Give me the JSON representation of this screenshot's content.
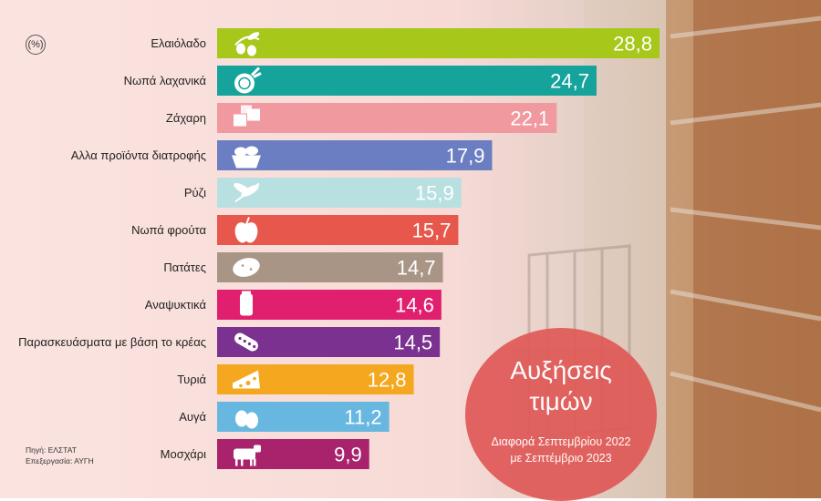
{
  "unit": "(%)",
  "source": [
    "Πηγή: ΕΛΣΤΑΤ",
    "Επεξεργασία: ΑΥΓΗ"
  ],
  "bubble": {
    "title_line1": "Αυξήσεις",
    "title_line2": "τιμών",
    "sub_line1": "Διαφορά Σεπτεμβρίου 2022",
    "sub_line2": "με Σεπτέμβριο 2023"
  },
  "chart_data": {
    "type": "bar",
    "orientation": "horizontal",
    "categories": [
      "Ελαιόλαδο",
      "Νωπά λαχανικά",
      "Ζάχαρη",
      "Αλλα προϊόντα διατροφής",
      "Ρύζι",
      "Νωπά φρούτα",
      "Πατάτες",
      "Αναψυκτικά",
      "Παρασκευάσματα με βάση το κρέας",
      "Τυριά",
      "Αυγά",
      "Μοσχάρι"
    ],
    "values": [
      28.8,
      24.7,
      22.1,
      17.9,
      15.9,
      15.7,
      14.7,
      14.6,
      14.5,
      12.8,
      11.2,
      9.9
    ],
    "value_labels": [
      "28,8",
      "24,7",
      "22,1",
      "17,9",
      "15,9",
      "15,7",
      "14,7",
      "14,6",
      "14,5",
      "12,8",
      "11,2",
      "9,9"
    ],
    "colors": [
      "#a7c81a",
      "#16a39b",
      "#f09aa0",
      "#6a7ec1",
      "#b9e0e0",
      "#e8574b",
      "#a89585",
      "#e0206e",
      "#7b3190",
      "#f5a81f",
      "#67b7e1",
      "#a8226c"
    ],
    "icons": [
      "olive-icon",
      "beet-icon",
      "sugar-cubes-icon",
      "bread-basket-icon",
      "rice-icon",
      "apple-icon",
      "potato-icon",
      "soda-can-icon",
      "sausage-icon",
      "cheese-icon",
      "eggs-icon",
      "cow-icon"
    ],
    "title": "Αυξήσεις τιμών",
    "xlim": [
      0,
      28.8
    ],
    "grid": false,
    "legend": "none"
  }
}
